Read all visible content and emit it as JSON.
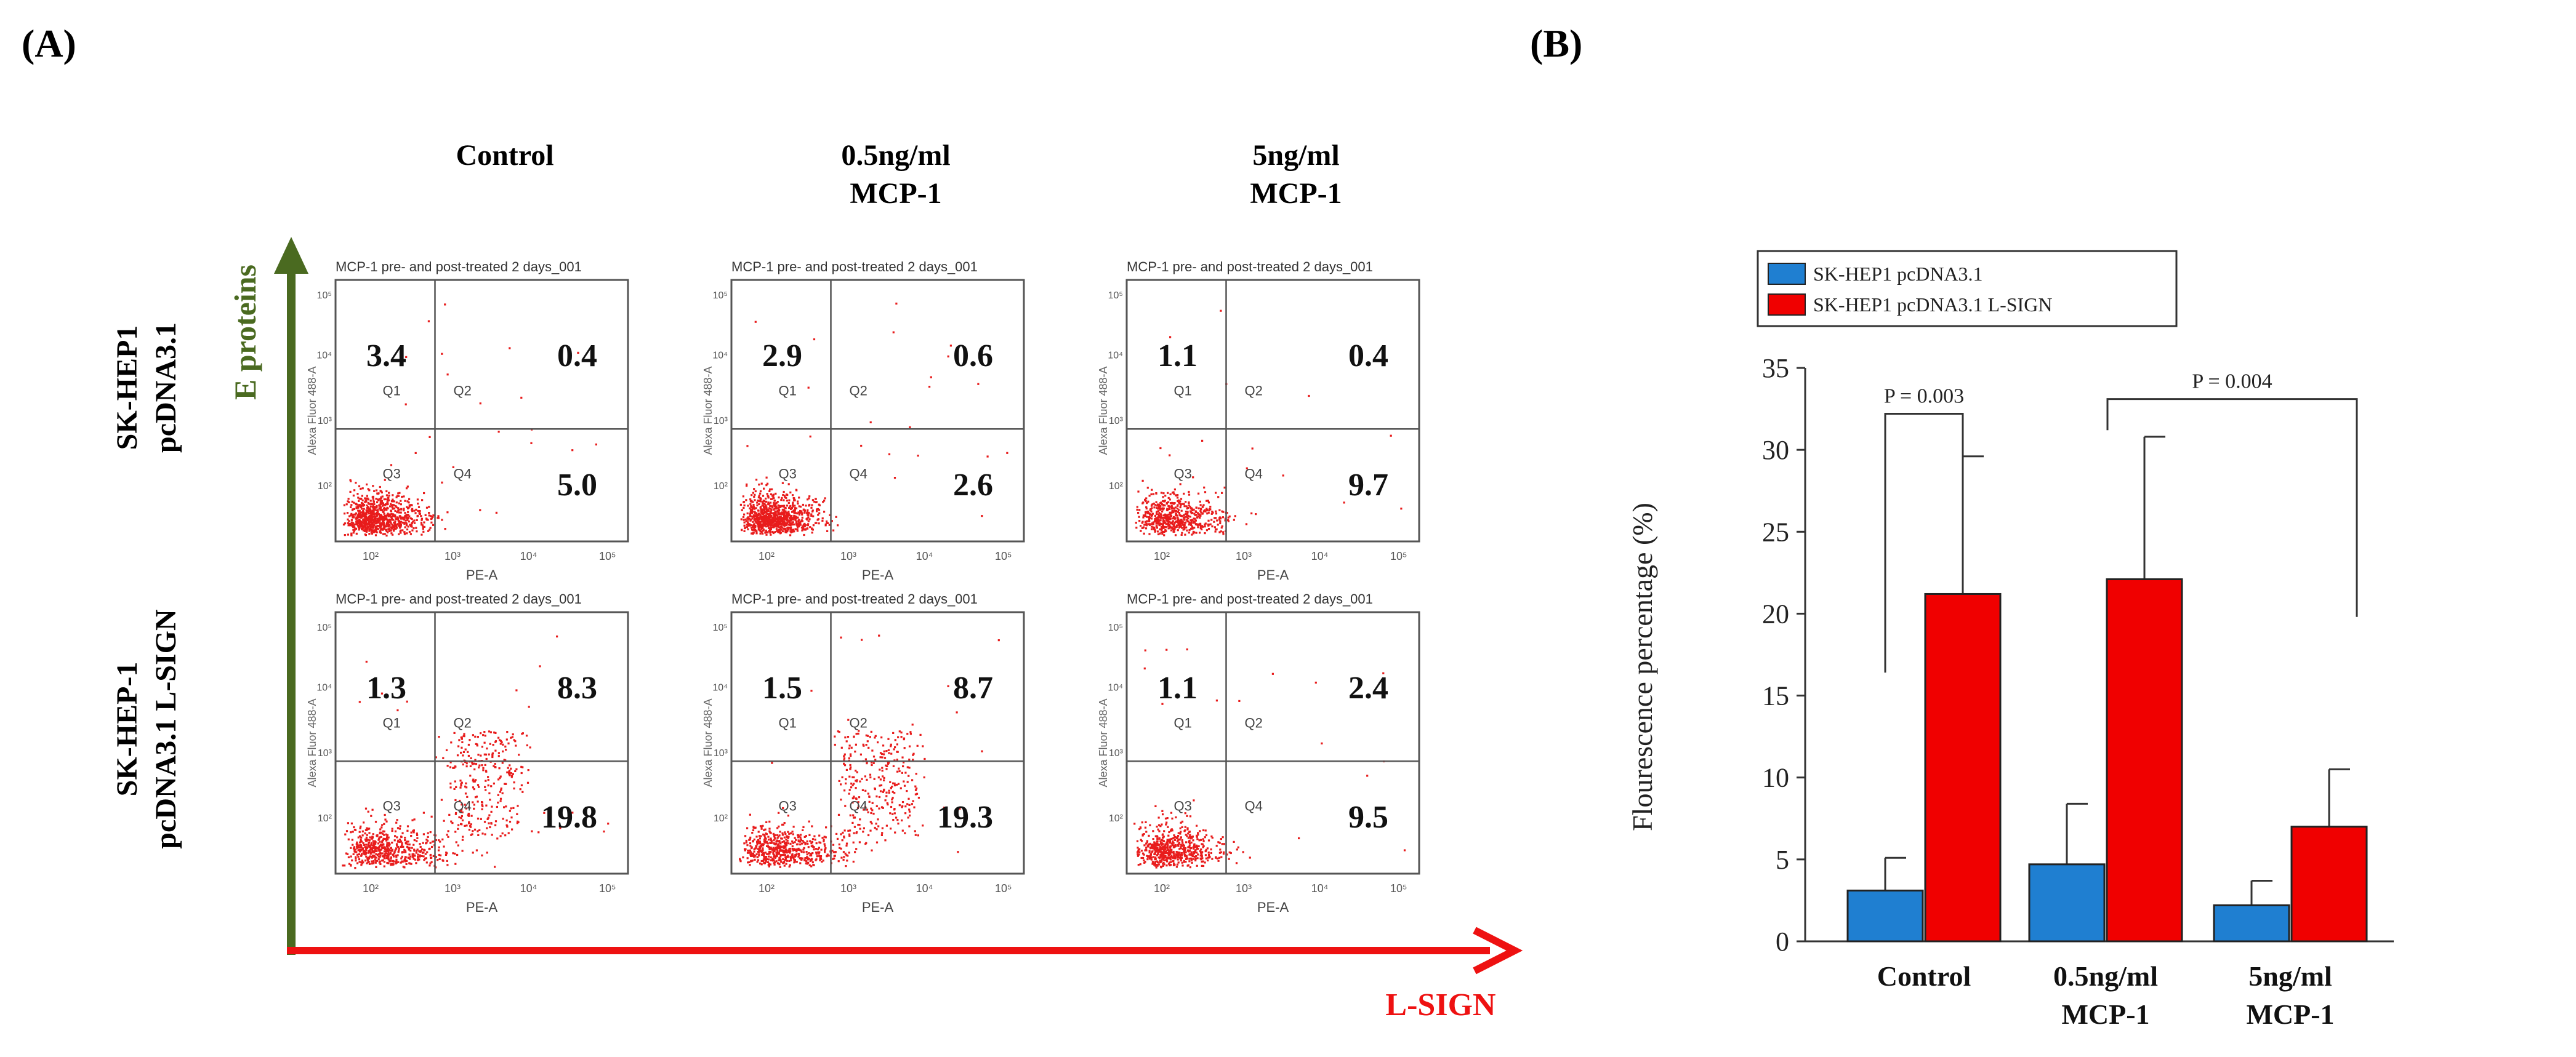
{
  "panel_a": {
    "label": "(A)",
    "columns": [
      "Control",
      "0.5ng/ml",
      "MCP-1",
      "5ng/ml",
      "MCP-1"
    ],
    "col_headers": [
      {
        "line1": "Control",
        "line2": ""
      },
      {
        "line1": "0.5ng/ml",
        "line2": "MCP-1"
      },
      {
        "line1": "5ng/ml",
        "line2": "MCP-1"
      }
    ],
    "row_labels": [
      {
        "line1": "SK-HEP1",
        "line2": "pcDNA3.1"
      },
      {
        "line1": "SK-HEP-1",
        "line2": "pcDNA3.1 L-SIGN"
      }
    ],
    "y_arrow_label": "E proteins",
    "x_arrow_label": "L-SIGN",
    "plot_title": "MCP-1 pre- and post-treated 2 days_001",
    "x_axis_label": "PE-A",
    "y_axis_label": "Alexa Fluor 488-A",
    "quadrant_labels": [
      "Q1",
      "Q2",
      "Q3",
      "Q4"
    ],
    "tick_labels": [
      "10²",
      "10³",
      "10⁴",
      "10⁵"
    ],
    "plots": [
      {
        "row": 0,
        "col": 0,
        "q1": "3.4",
        "q2": "0.4",
        "q4": "5.0",
        "density": 1.0,
        "spread": 0.3
      },
      {
        "row": 0,
        "col": 1,
        "q1": "2.9",
        "q2": "0.6",
        "q4": "2.6",
        "density": 1.0,
        "spread": 0.25
      },
      {
        "row": 0,
        "col": 2,
        "q1": "1.1",
        "q2": "0.4",
        "q4": "9.7",
        "density": 0.7,
        "spread": 0.6
      },
      {
        "row": 1,
        "col": 0,
        "q1": "1.3",
        "q2": "8.3",
        "q4": "19.8",
        "density": 1.0,
        "spread": 1.0
      },
      {
        "row": 1,
        "col": 1,
        "q1": "1.5",
        "q2": "8.7",
        "q4": "19.3",
        "density": 1.0,
        "spread": 1.0
      },
      {
        "row": 1,
        "col": 2,
        "q1": "1.1",
        "q2": "2.4",
        "q4": "9.5",
        "density": 0.7,
        "spread": 0.5
      }
    ]
  },
  "panel_b": {
    "label": "(B)"
  },
  "colors": {
    "blue": "#1f7fd1",
    "red": "#f00000",
    "dark_green": "#4a6a20",
    "arrow_red": "#ee1111",
    "scatter": "#e81c1c"
  },
  "chart_data": {
    "type": "bar",
    "categories": [
      "Control",
      "0.5ng/ml MCP-1",
      "5ng/ml MCP-1"
    ],
    "category_lines": [
      [
        "Control"
      ],
      [
        "0.5ng/ml",
        "MCP-1"
      ],
      [
        "5ng/ml",
        "MCP-1"
      ]
    ],
    "series": [
      {
        "name": "SK-HEP1 pcDNA3.1",
        "values": [
          3.1,
          4.7,
          2.2
        ],
        "errors": [
          2.0,
          3.7,
          1.5
        ],
        "color": "#1f7fd1"
      },
      {
        "name": "SK-HEP1 pcDNA3.1 L-SIGN",
        "values": [
          21.2,
          22.1,
          7.0
        ],
        "errors": [
          8.4,
          8.7,
          3.5
        ],
        "color": "#f00000"
      }
    ],
    "ylabel": "Flourescence percentage (%)",
    "xlabel": "",
    "ylim": [
      0,
      35
    ],
    "yticks": [
      0,
      5,
      10,
      15,
      20,
      25,
      30,
      35
    ],
    "legend_position": "top-left",
    "annotations": [
      {
        "text": "P = 0.003",
        "from_category": 0,
        "from_series": 0,
        "to_category": 0,
        "to_series": 1
      },
      {
        "text": "P = 0.004",
        "from_category": 1,
        "from_series": 1,
        "to_category": 2,
        "to_series": 1
      }
    ]
  }
}
